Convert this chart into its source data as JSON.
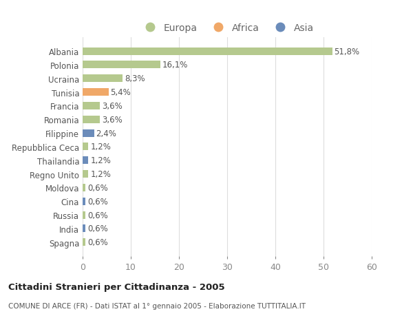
{
  "countries": [
    "Albania",
    "Polonia",
    "Ucraina",
    "Tunisia",
    "Francia",
    "Romania",
    "Filippine",
    "Repubblica Ceca",
    "Thailandia",
    "Regno Unito",
    "Moldova",
    "Cina",
    "Russia",
    "India",
    "Spagna"
  ],
  "values": [
    51.8,
    16.1,
    8.3,
    5.4,
    3.6,
    3.6,
    2.4,
    1.2,
    1.2,
    1.2,
    0.6,
    0.6,
    0.6,
    0.6,
    0.6
  ],
  "labels": [
    "51,8%",
    "16,1%",
    "8,3%",
    "5,4%",
    "3,6%",
    "3,6%",
    "2,4%",
    "1,2%",
    "1,2%",
    "1,2%",
    "0,6%",
    "0,6%",
    "0,6%",
    "0,6%",
    "0,6%"
  ],
  "continents": [
    "Europa",
    "Europa",
    "Europa",
    "Africa",
    "Europa",
    "Europa",
    "Asia",
    "Europa",
    "Asia",
    "Europa",
    "Europa",
    "Asia",
    "Europa",
    "Asia",
    "Europa"
  ],
  "colors": {
    "Europa": "#b5c98e",
    "Africa": "#f0a868",
    "Asia": "#6b8cba"
  },
  "title": "Cittadini Stranieri per Cittadinanza - 2005",
  "subtitle": "COMUNE DI ARCE (FR) - Dati ISTAT al 1° gennaio 2005 - Elaborazione TUTTITALIA.IT",
  "xlim": [
    0,
    60
  ],
  "xticks": [
    0,
    10,
    20,
    30,
    40,
    50,
    60
  ],
  "background_color": "#ffffff",
  "grid_color": "#dddddd",
  "bar_height": 0.55,
  "label_fontsize": 8.5,
  "ytick_fontsize": 8.5,
  "xtick_fontsize": 9
}
